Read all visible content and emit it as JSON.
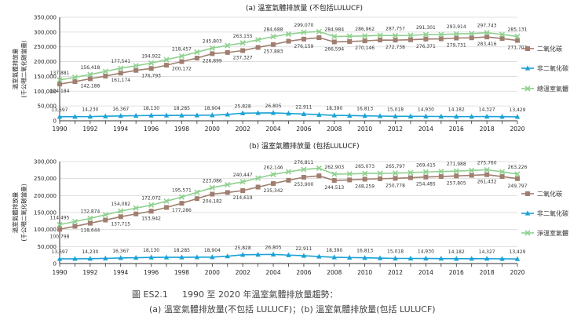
{
  "caption": {
    "label": "圖 ES2.1",
    "line1": "1990 至 2020 年溫室氣體排放量趨勢：",
    "line2": "(a) 溫室氣體排放量(不包括 LULUCF)；(b) 溫室氣體排放量(包括 LULUCF)"
  },
  "colors": {
    "co2": "#a07e70",
    "nonco2": "#1aa2d6",
    "total": "#8fd08f"
  },
  "chart_data": [
    {
      "type": "line",
      "title": "(a) 溫室氣體排放量 (不包括LULUCF)",
      "ylabel": [
        "溫室氣體排放量",
        "(千公噸二氧化碳當量)"
      ],
      "ylim": [
        0,
        350000
      ],
      "yticks": [
        0,
        50000,
        100000,
        150000,
        200000,
        250000,
        300000,
        350000
      ],
      "ytick_labels": [
        "0",
        "50,000",
        "100,000",
        "150,000",
        "200,000",
        "250,000",
        "300,000",
        "350,000"
      ],
      "x": [
        1990,
        1991,
        1992,
        1993,
        1994,
        1995,
        1996,
        1997,
        1998,
        1999,
        2000,
        2001,
        2002,
        2003,
        2004,
        2005,
        2006,
        2007,
        2008,
        2009,
        2010,
        2011,
        2012,
        2013,
        2014,
        2015,
        2016,
        2017,
        2018,
        2019,
        2020
      ],
      "xtick_labels": [
        "1990",
        "1992",
        "1994",
        "1996",
        "1998",
        "2000",
        "2002",
        "2004",
        "2006",
        "2008",
        "2010",
        "2012",
        "2014",
        "2016",
        "2018",
        "2020"
      ],
      "series": [
        {
          "name": "二氧化碳",
          "key": "co2",
          "marker": "square",
          "values": [
            124184,
            132500,
            142188,
            151000,
            161174,
            170500,
            176793,
            188000,
            200172,
            212000,
            226899,
            231000,
            237327,
            248000,
            257883,
            269000,
            276159,
            281000,
            266594,
            268000,
            270146,
            273000,
            272738,
            274000,
            276371,
            277000,
            279731,
            280500,
            283416,
            278000,
            271702
          ]
        },
        {
          "name": "非二氧化碳",
          "key": "nonco2",
          "marker": "triangle",
          "values": [
            13697,
            13950,
            14230,
            15300,
            16367,
            17200,
            18130,
            18200,
            18285,
            18600,
            18904,
            21500,
            25828,
            26300,
            26805,
            24800,
            22911,
            20600,
            18390,
            17600,
            16813,
            15900,
            15018,
            15000,
            14930,
            14550,
            14182,
            14250,
            14327,
            13900,
            13429
          ]
        },
        {
          "name": "總溫室氣體",
          "key": "total",
          "marker": "x",
          "values": [
            137881,
            146900,
            156418,
            167000,
            177541,
            186000,
            194922,
            206600,
            218457,
            232000,
            245803,
            254500,
            263155,
            274000,
            284688,
            293000,
            299070,
            301600,
            284984,
            285800,
            286962,
            288900,
            287757,
            289000,
            291301,
            291600,
            293914,
            294700,
            297743,
            291900,
            285131
          ]
        }
      ],
      "labels": {
        "total": {
          "1990": "137,881",
          "1992": "156,418",
          "1994": "177,541",
          "1996": "194,922",
          "1998": "218,457",
          "2000": "245,803",
          "2002": "263,155",
          "2004": "284,688",
          "2006": "299,070",
          "2008": "284,984",
          "2010": "286,962",
          "2012": "287,757",
          "2014": "291,301",
          "2016": "293,914",
          "2018": "297,743",
          "2020": "285,131"
        },
        "co2": {
          "1990": "124,184",
          "1992": "142,188",
          "1994": "161,174",
          "1996": "176,793",
          "1998": "200,172",
          "2000": "226,899",
          "2002": "237,327",
          "2004": "257,883",
          "2006": "276,159",
          "2008": "266,594",
          "2010": "270,146",
          "2012": "272,738",
          "2014": "276,371",
          "2016": "279,731",
          "2018": "283,416",
          "2020": "271,702"
        },
        "nonco2": {
          "1990": "13,697",
          "1992": "14,230",
          "1994": "16,367",
          "1996": "18,130",
          "1998": "18,285",
          "2000": "18,904",
          "2002": "25,828",
          "2004": "26,805",
          "2006": "22,911",
          "2008": "18,390",
          "2010": "16,813",
          "2012": "15,018",
          "2014": "14,930",
          "2016": "14,182",
          "2018": "14,327",
          "2020": "13,429"
        }
      },
      "legend": [
        {
          "label": "二氧化碳",
          "key": "co2"
        },
        {
          "label": "非二氧化碳",
          "key": "nonco2"
        },
        {
          "label": "總溫室氣體",
          "key": "total"
        }
      ],
      "legend_position": "right",
      "grid": "horizontal"
    },
    {
      "type": "line",
      "title": "(b) 溫室氣體排放量 (包括LULUCF)",
      "ylabel": [
        "溫室氣體排放量",
        "(千公噸二氧化碳當量)"
      ],
      "ylim": [
        0,
        300000
      ],
      "yticks": [
        0,
        50000,
        100000,
        150000,
        200000,
        250000,
        300000
      ],
      "ytick_labels": [
        "0",
        "50,000",
        "100,000",
        "150,000",
        "200,000",
        "250,000",
        "300,000"
      ],
      "x": [
        1990,
        1991,
        1992,
        1993,
        1994,
        1995,
        1996,
        1997,
        1998,
        1999,
        2000,
        2001,
        2002,
        2003,
        2004,
        2005,
        2006,
        2007,
        2008,
        2009,
        2010,
        2011,
        2012,
        2013,
        2014,
        2015,
        2016,
        2017,
        2018,
        2019,
        2020
      ],
      "xtick_labels": [
        "1990",
        "1992",
        "1994",
        "1996",
        "1998",
        "2000",
        "2002",
        "2004",
        "2006",
        "2008",
        "2010",
        "2012",
        "2014",
        "2016",
        "2018",
        "2020"
      ],
      "series": [
        {
          "name": "二氧化碳",
          "key": "co2",
          "marker": "square",
          "values": [
            100798,
            109500,
            118644,
            128000,
            137715,
            146000,
            153942,
            165000,
            177286,
            191000,
            204182,
            209000,
            214619,
            225000,
            235342,
            245000,
            253900,
            258000,
            244513,
            246000,
            248259,
            249500,
            250778,
            252500,
            254485,
            256000,
            257805,
            259500,
            261432,
            256000,
            249797
          ]
        },
        {
          "name": "非二氧化碳",
          "key": "nonco2",
          "marker": "triangle",
          "values": [
            13697,
            13950,
            14230,
            15300,
            16367,
            17200,
            18130,
            18200,
            18285,
            18600,
            18904,
            21500,
            25828,
            26300,
            26805,
            24800,
            22911,
            20600,
            18390,
            17600,
            16813,
            15900,
            15018,
            15000,
            14930,
            14550,
            14182,
            14250,
            14327,
            13900,
            13429
          ]
        },
        {
          "name": "淨溫室氣體",
          "key": "total",
          "marker": "x",
          "values": [
            114495,
            123500,
            132874,
            143500,
            154082,
            163000,
            172072,
            183500,
            195571,
            209500,
            223086,
            232000,
            240447,
            251500,
            262146,
            270000,
            276811,
            280500,
            262903,
            263800,
            265073,
            265500,
            265797,
            267500,
            269415,
            270800,
            271988,
            273800,
            275760,
            269800,
            263226
          ]
        }
      ],
      "labels": {
        "total": {
          "1990": "114,495",
          "1992": "132,874",
          "1994": "154,082",
          "1996": "172,072",
          "1998": "195,571",
          "2000": "223,086",
          "2002": "240,447",
          "2004": "262,146",
          "2006": "276,811",
          "2008": "262,903",
          "2010": "265,073",
          "2012": "265,797",
          "2014": "269,415",
          "2016": "271,988",
          "2018": "275,760",
          "2020": "263,226"
        },
        "co2": {
          "1990": "100,798",
          "1992": "118,644",
          "1994": "137,715",
          "1996": "153,942",
          "1998": "177,286",
          "2000": "204,182",
          "2002": "214,619",
          "2004": "235,342",
          "2006": "253,900",
          "2008": "244,513",
          "2010": "248,259",
          "2012": "250,778",
          "2014": "254,485",
          "2016": "257,805",
          "2018": "261,432",
          "2020": "249,797"
        },
        "nonco2": {
          "1990": "13,697",
          "1992": "14,230",
          "1994": "16,367",
          "1996": "18,130",
          "1998": "18,285",
          "2000": "18,904",
          "2002": "25,828",
          "2004": "26,805",
          "2006": "22,911",
          "2008": "18,390",
          "2010": "16,813",
          "2012": "15,018",
          "2014": "14,930",
          "2016": "14,182",
          "2018": "14,327",
          "2020": "13,429"
        }
      },
      "legend": [
        {
          "label": "二氧化碳",
          "key": "co2"
        },
        {
          "label": "非二氧化碳",
          "key": "nonco2"
        },
        {
          "label": "淨溫室氣體",
          "key": "total"
        }
      ],
      "legend_position": "right",
      "grid": "horizontal"
    }
  ]
}
